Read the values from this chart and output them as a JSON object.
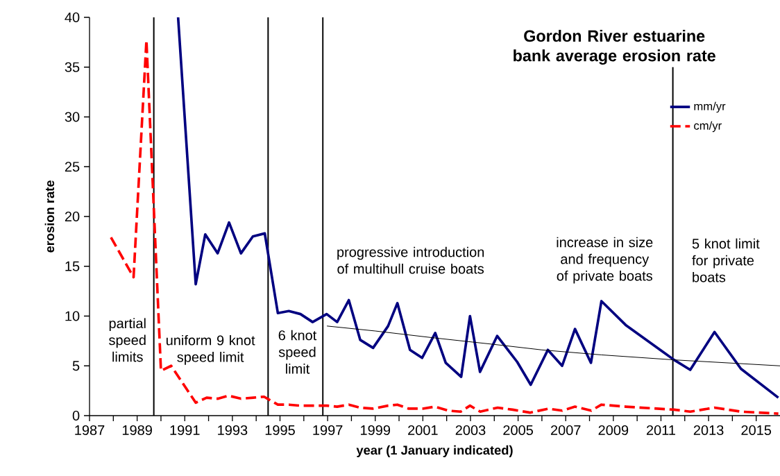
{
  "chart_data": {
    "type": "line",
    "title": "Gordon River estuarine bank average erosion rate",
    "xlabel": "year (1 January indicated)",
    "ylabel": "erosion rate",
    "xlim": [
      1987,
      2016
    ],
    "ylim": [
      0,
      40
    ],
    "xticks": [
      1987,
      {
        "value": 1988,
        "label": null
      },
      1989,
      {
        "value": 1990,
        "label": null
      },
      1991,
      {
        "value": 1992,
        "label": null
      },
      1993,
      {
        "value": 1994,
        "label": null
      },
      1995,
      {
        "value": 1996,
        "label": null
      },
      1997,
      {
        "value": 1998,
        "label": null
      },
      1999,
      {
        "value": 2000,
        "label": null
      },
      2001,
      {
        "value": 2002,
        "label": null
      },
      2003,
      {
        "value": 2004,
        "label": null
      },
      2005,
      {
        "value": 2006,
        "label": null
      },
      2007,
      {
        "value": 2008,
        "label": null
      },
      2009,
      {
        "value": 2010,
        "label": null
      },
      2011,
      {
        "value": 2012,
        "label": null
      },
      2013,
      {
        "value": 2014,
        "label": null
      },
      2015
    ],
    "yticks": [
      0,
      5,
      10,
      15,
      20,
      25,
      30,
      35,
      40
    ],
    "grid": false,
    "legend": "top right",
    "series": [
      {
        "name": "mm/yr",
        "color": "#000080",
        "line_style": "solid",
        "x": [
          1990.72,
          1991.46,
          1991.86,
          1992.38,
          1992.86,
          1993.36,
          1993.86,
          1994.36,
          1994.91,
          1995.37,
          1995.86,
          1996.37,
          1996.96,
          1997.4,
          1997.89,
          1998.37,
          1998.91,
          1999.54,
          1999.93,
          2000.46,
          2000.97,
          2001.52,
          2001.96,
          2002.61,
          2002.98,
          2003.4,
          2004.12,
          2004.96,
          2005.53,
          2006.25,
          2006.85,
          2007.39,
          2008.06,
          2008.5,
          2009.52,
          2011.55,
          2012.23,
          2013.25,
          2014.36,
          2015.93
        ],
        "values": [
          40,
          13.2,
          18.2,
          16.3,
          19.4,
          16.3,
          18.0,
          18.3,
          10.3,
          10.5,
          10.2,
          9.4,
          10.2,
          9.4,
          11.6,
          7.6,
          6.8,
          9.0,
          11.3,
          6.6,
          5.8,
          8.3,
          5.3,
          3.9,
          10.0,
          4.4,
          8.0,
          5.4,
          3.1,
          6.6,
          5.0,
          8.7,
          5.3,
          11.5,
          9.1,
          5.6,
          4.6,
          8.4,
          4.7,
          1.8
        ]
      },
      {
        "name": "cm/yr",
        "color": "#ff0000",
        "line_style": "dashed",
        "x": [
          1987.9,
          1988.85,
          1989.39,
          1990.0,
          1990.43,
          1991.46,
          1991.92,
          1992.4,
          1992.84,
          1993.36,
          1993.88,
          1994.33,
          1994.91,
          1995.37,
          1995.86,
          1996.37,
          1996.97,
          1997.4,
          1997.89,
          1998.37,
          1998.9,
          1999.54,
          1999.93,
          2000.41,
          2000.99,
          2001.52,
          2002.06,
          2002.59,
          2002.98,
          2003.41,
          2004.14,
          2004.77,
          2005.5,
          2006.27,
          2006.85,
          2007.39,
          2008.07,
          2008.5,
          2009.52,
          2011.55,
          2012.23,
          2013.25,
          2014.36,
          2015.93
        ],
        "values": [
          17.9,
          13.9,
          37.7,
          4.5,
          5.0,
          1.3,
          1.8,
          1.7,
          2.0,
          1.7,
          1.8,
          1.9,
          1.1,
          1.1,
          1.0,
          1.0,
          1.0,
          0.9,
          1.1,
          0.8,
          0.7,
          1.0,
          1.1,
          0.7,
          0.7,
          0.9,
          0.5,
          0.4,
          1.0,
          0.4,
          0.8,
          0.6,
          0.3,
          0.7,
          0.5,
          0.9,
          0.5,
          1.1,
          0.9,
          0.6,
          0.4,
          0.8,
          0.4,
          0.2
        ]
      },
      {
        "color": "#000000",
        "line_style": "solid",
        "x": [
          1996.97,
          1999,
          2001.5,
          2004,
          2006,
          2008.5,
          2011.55,
          2016
        ],
        "values": [
          9.0,
          8.5,
          7.8,
          7.15,
          6.6,
          6.1,
          5.6,
          5.0
        ]
      }
    ],
    "ref_lines": [
      {
        "axis": "x",
        "value": 1989.7,
        "color": "#000000"
      },
      {
        "axis": "x",
        "value": 1994.5,
        "color": "#000000"
      },
      {
        "axis": "x",
        "value": 1996.8,
        "color": "#000000"
      },
      {
        "axis": "x",
        "value": 2011.5,
        "color": "#000000"
      }
    ],
    "annotations": [
      "partial speed limits",
      "uniform 9 knot speed limit",
      "6 knot speed limit",
      "progressive introduction of multihull cruise boats",
      "increase in size and frequency of private boats",
      "5 knot limit for private boats"
    ]
  }
}
